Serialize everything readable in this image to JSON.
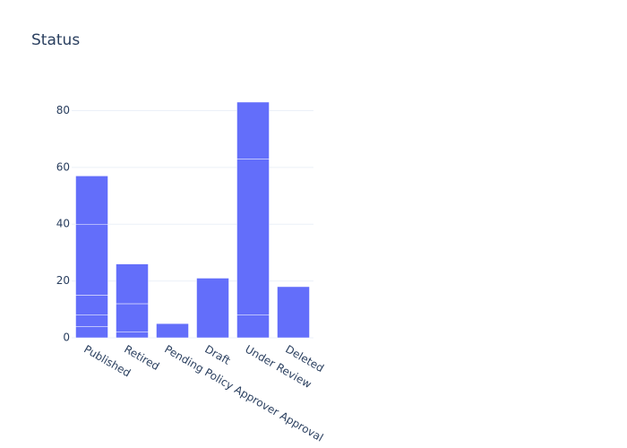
{
  "chart_data": {
    "type": "stacked-bar",
    "title": "Status",
    "categories": [
      "Published",
      "Retired",
      "Pending Policy Approver Approval",
      "Draft",
      "Under Review",
      "Deleted"
    ],
    "values": [
      [
        4,
        4,
        7,
        25,
        17
      ],
      [
        2,
        10,
        14
      ],
      [
        5
      ],
      [
        21
      ],
      [
        8,
        55,
        20
      ],
      [
        18
      ]
    ],
    "color": "#636efa",
    "ylim": [
      0,
      87.4
    ],
    "yticks": [
      0,
      20,
      40,
      60,
      80
    ],
    "grid": true
  }
}
